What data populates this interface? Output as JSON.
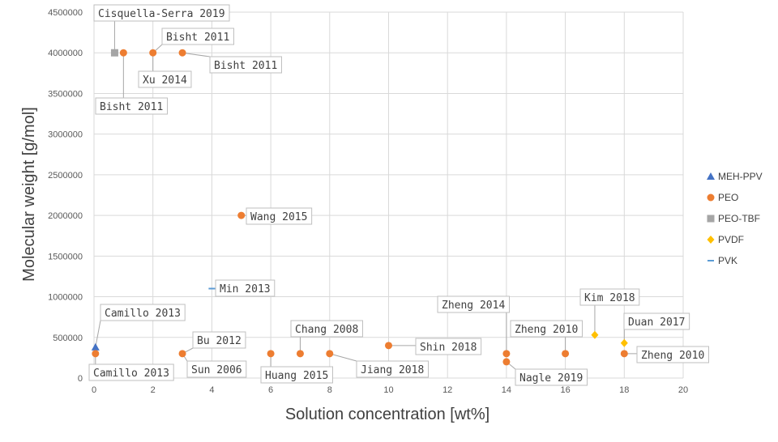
{
  "chart_data": {
    "type": "scatter",
    "title": "",
    "xlabel": "Solution concentration [wt%]",
    "ylabel": "Molecular weight [g/mol]",
    "xlim": [
      0,
      20
    ],
    "ylim": [
      0,
      4500000
    ],
    "x_ticks": [
      0,
      2,
      4,
      6,
      8,
      10,
      12,
      14,
      16,
      18,
      20
    ],
    "y_ticks": [
      0,
      500000,
      1000000,
      1500000,
      2000000,
      2500000,
      3000000,
      3500000,
      4000000,
      4500000
    ],
    "grid": true,
    "legend_position": "right",
    "series": [
      {
        "name": "MEH-PPV",
        "marker": "triangle",
        "color": "#4472C4",
        "points": [
          {
            "x": 0.05,
            "y": 380000
          }
        ]
      },
      {
        "name": "PEO",
        "marker": "circle",
        "color": "#ED7D31",
        "points": [
          {
            "x": 1.0,
            "y": 4000000
          },
          {
            "x": 2.0,
            "y": 4000000
          },
          {
            "x": 3.0,
            "y": 4000000
          },
          {
            "x": 5.0,
            "y": 2000000
          },
          {
            "x": 0.05,
            "y": 300000
          },
          {
            "x": 3.0,
            "y": 300000
          },
          {
            "x": 6.0,
            "y": 300000
          },
          {
            "x": 7.0,
            "y": 300000
          },
          {
            "x": 8.0,
            "y": 300000
          },
          {
            "x": 10.0,
            "y": 400000
          },
          {
            "x": 14.0,
            "y": 300000
          },
          {
            "x": 14.0,
            "y": 200000
          },
          {
            "x": 16.0,
            "y": 300000
          },
          {
            "x": 18.0,
            "y": 300000
          }
        ]
      },
      {
        "name": "PEO-TBF",
        "marker": "square",
        "color": "#A5A5A5",
        "points": [
          {
            "x": 0.7,
            "y": 4000000
          }
        ]
      },
      {
        "name": "PVDF",
        "marker": "diamond",
        "color": "#FFC000",
        "points": [
          {
            "x": 17.0,
            "y": 530000
          },
          {
            "x": 18.0,
            "y": 430000
          }
        ]
      },
      {
        "name": "PVK",
        "marker": "dash",
        "color": "#5B9BD5",
        "points": [
          {
            "x": 4.0,
            "y": 1100000
          }
        ]
      }
    ],
    "annotations": [
      {
        "text": "Cisquella-Serra 2019",
        "x": 0.7,
        "y": 4000000
      },
      {
        "text": "Bisht 2011",
        "x": 1.0,
        "y": 4000000
      },
      {
        "text": "Xu 2014",
        "x": 2.0,
        "y": 4000000
      },
      {
        "text": "Bisht 2011",
        "x": 2.0,
        "y": 4000000
      },
      {
        "text": "Bisht 2011",
        "x": 3.0,
        "y": 4000000
      },
      {
        "text": "Wang 2015",
        "x": 5.0,
        "y": 2000000
      },
      {
        "text": "Min 2013",
        "x": 4.0,
        "y": 1100000
      },
      {
        "text": "Camillo 2013",
        "x": 0.05,
        "y": 380000
      },
      {
        "text": "Camillo 2013",
        "x": 0.05,
        "y": 300000
      },
      {
        "text": "Bu 2012",
        "x": 3.0,
        "y": 300000
      },
      {
        "text": "Sun 2006",
        "x": 3.0,
        "y": 300000
      },
      {
        "text": "Huang 2015",
        "x": 6.0,
        "y": 300000
      },
      {
        "text": "Chang 2008",
        "x": 7.0,
        "y": 300000
      },
      {
        "text": "Jiang 2018",
        "x": 8.0,
        "y": 300000
      },
      {
        "text": "Shin 2018",
        "x": 10.0,
        "y": 400000
      },
      {
        "text": "Zheng 2014",
        "x": 14.0,
        "y": 300000
      },
      {
        "text": "Nagle 2019",
        "x": 14.0,
        "y": 200000
      },
      {
        "text": "Zheng 2010",
        "x": 16.0,
        "y": 300000
      },
      {
        "text": "Kim 2018",
        "x": 17.0,
        "y": 530000
      },
      {
        "text": "Duan 2017",
        "x": 18.0,
        "y": 430000
      },
      {
        "text": "Zheng 2010",
        "x": 18.0,
        "y": 300000
      }
    ]
  }
}
